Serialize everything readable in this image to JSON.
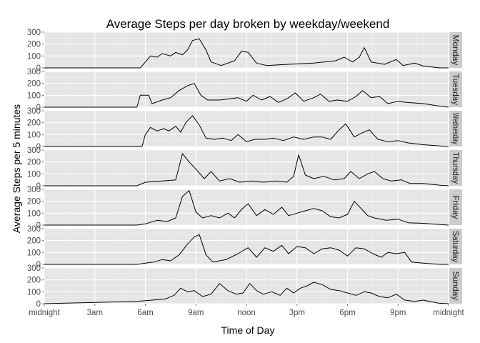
{
  "chart_data": {
    "type": "line",
    "title": "Average Steps per day broken by weekday/weekend",
    "xlabel": "Time of Day",
    "ylabel": "Average Steps per 5 minutes",
    "xlim": [
      0,
      24
    ],
    "ylim": [
      0,
      300
    ],
    "x_tick_values": [
      0,
      3,
      6,
      9,
      12,
      15,
      18,
      21,
      24
    ],
    "x_tick_labels": [
      "midnight",
      "3am",
      "6am",
      "9am",
      "noon",
      "3pm",
      "6pm",
      "9pm",
      "midnight"
    ],
    "y_tick_values": [
      0,
      100,
      200,
      300
    ],
    "y_tick_labels": [
      "0",
      "100",
      "200",
      "300"
    ],
    "grid": true,
    "facets": [
      {
        "name": "Monday",
        "points": [
          [
            0,
            0
          ],
          [
            5.7,
            0
          ],
          [
            6.0,
            50
          ],
          [
            6.3,
            100
          ],
          [
            6.7,
            90
          ],
          [
            7.0,
            120
          ],
          [
            7.5,
            100
          ],
          [
            7.8,
            130
          ],
          [
            8.2,
            110
          ],
          [
            8.5,
            150
          ],
          [
            8.8,
            230
          ],
          [
            9.2,
            245
          ],
          [
            9.6,
            150
          ],
          [
            9.9,
            50
          ],
          [
            10.5,
            20
          ],
          [
            11.3,
            60
          ],
          [
            11.7,
            140
          ],
          [
            12.1,
            130
          ],
          [
            12.6,
            40
          ],
          [
            13.2,
            20
          ],
          [
            14.5,
            30
          ],
          [
            16.0,
            40
          ],
          [
            17.3,
            60
          ],
          [
            17.8,
            90
          ],
          [
            18.3,
            50
          ],
          [
            18.7,
            90
          ],
          [
            19.0,
            170
          ],
          [
            19.4,
            50
          ],
          [
            20.2,
            30
          ],
          [
            20.9,
            70
          ],
          [
            21.3,
            20
          ],
          [
            22.0,
            40
          ],
          [
            22.5,
            15
          ],
          [
            23.5,
            0
          ],
          [
            24,
            0
          ]
        ]
      },
      {
        "name": "Tuesday",
        "points": [
          [
            0,
            0
          ],
          [
            5.5,
            0
          ],
          [
            5.7,
            100
          ],
          [
            6.2,
            100
          ],
          [
            6.4,
            30
          ],
          [
            7.0,
            60
          ],
          [
            7.5,
            80
          ],
          [
            8.0,
            140
          ],
          [
            8.5,
            180
          ],
          [
            8.9,
            200
          ],
          [
            9.3,
            100
          ],
          [
            9.7,
            60
          ],
          [
            10.4,
            60
          ],
          [
            11.0,
            70
          ],
          [
            11.5,
            80
          ],
          [
            12.0,
            50
          ],
          [
            12.4,
            100
          ],
          [
            12.9,
            60
          ],
          [
            13.4,
            90
          ],
          [
            13.9,
            40
          ],
          [
            14.4,
            70
          ],
          [
            14.9,
            120
          ],
          [
            15.4,
            50
          ],
          [
            16.0,
            80
          ],
          [
            16.4,
            110
          ],
          [
            16.9,
            50
          ],
          [
            17.4,
            60
          ],
          [
            18.0,
            50
          ],
          [
            18.5,
            90
          ],
          [
            18.9,
            140
          ],
          [
            19.4,
            80
          ],
          [
            19.9,
            90
          ],
          [
            20.4,
            30
          ],
          [
            21.0,
            50
          ],
          [
            21.5,
            40
          ],
          [
            22.5,
            30
          ],
          [
            23.4,
            10
          ],
          [
            24,
            0
          ]
        ]
      },
      {
        "name": "Wednesday",
        "points": [
          [
            0,
            0
          ],
          [
            5.8,
            0
          ],
          [
            6.0,
            100
          ],
          [
            6.3,
            160
          ],
          [
            6.7,
            130
          ],
          [
            7.1,
            150
          ],
          [
            7.4,
            130
          ],
          [
            7.8,
            170
          ],
          [
            8.1,
            120
          ],
          [
            8.4,
            200
          ],
          [
            8.8,
            260
          ],
          [
            9.2,
            180
          ],
          [
            9.6,
            70
          ],
          [
            10.1,
            60
          ],
          [
            10.6,
            70
          ],
          [
            11.1,
            50
          ],
          [
            11.5,
            100
          ],
          [
            12.0,
            40
          ],
          [
            12.5,
            60
          ],
          [
            13.1,
            60
          ],
          [
            13.6,
            70
          ],
          [
            14.2,
            50
          ],
          [
            14.8,
            80
          ],
          [
            15.4,
            60
          ],
          [
            16.0,
            80
          ],
          [
            16.5,
            80
          ],
          [
            17.0,
            60
          ],
          [
            17.5,
            140
          ],
          [
            17.9,
            190
          ],
          [
            18.4,
            80
          ],
          [
            18.8,
            110
          ],
          [
            19.3,
            140
          ],
          [
            19.8,
            60
          ],
          [
            20.4,
            40
          ],
          [
            21.0,
            50
          ],
          [
            21.6,
            30
          ],
          [
            22.5,
            15
          ],
          [
            23.5,
            5
          ],
          [
            24,
            0
          ]
        ]
      },
      {
        "name": "Thursday",
        "points": [
          [
            0,
            0
          ],
          [
            5.5,
            0
          ],
          [
            6.0,
            30
          ],
          [
            7.0,
            40
          ],
          [
            7.8,
            50
          ],
          [
            8.2,
            270
          ],
          [
            8.6,
            200
          ],
          [
            9.0,
            140
          ],
          [
            9.5,
            60
          ],
          [
            9.9,
            120
          ],
          [
            10.4,
            40
          ],
          [
            11.0,
            60
          ],
          [
            11.6,
            30
          ],
          [
            12.3,
            40
          ],
          [
            13.0,
            30
          ],
          [
            13.8,
            40
          ],
          [
            14.4,
            30
          ],
          [
            14.8,
            80
          ],
          [
            15.1,
            260
          ],
          [
            15.5,
            90
          ],
          [
            16.0,
            60
          ],
          [
            16.6,
            80
          ],
          [
            17.2,
            50
          ],
          [
            17.8,
            60
          ],
          [
            18.2,
            120
          ],
          [
            18.7,
            60
          ],
          [
            19.2,
            100
          ],
          [
            19.6,
            120
          ],
          [
            20.1,
            60
          ],
          [
            20.6,
            40
          ],
          [
            21.2,
            50
          ],
          [
            21.7,
            20
          ],
          [
            22.5,
            20
          ],
          [
            23.5,
            5
          ],
          [
            24,
            0
          ]
        ]
      },
      {
        "name": "Friday",
        "points": [
          [
            0,
            0
          ],
          [
            5.5,
            0
          ],
          [
            6.0,
            10
          ],
          [
            6.7,
            40
          ],
          [
            7.3,
            30
          ],
          [
            7.8,
            60
          ],
          [
            8.2,
            240
          ],
          [
            8.6,
            290
          ],
          [
            9.0,
            110
          ],
          [
            9.4,
            60
          ],
          [
            9.9,
            80
          ],
          [
            10.4,
            60
          ],
          [
            10.9,
            100
          ],
          [
            11.3,
            60
          ],
          [
            11.7,
            130
          ],
          [
            12.1,
            180
          ],
          [
            12.6,
            80
          ],
          [
            13.1,
            130
          ],
          [
            13.6,
            90
          ],
          [
            14.1,
            150
          ],
          [
            14.5,
            80
          ],
          [
            15.0,
            100
          ],
          [
            15.5,
            120
          ],
          [
            16.0,
            140
          ],
          [
            16.5,
            120
          ],
          [
            17.0,
            70
          ],
          [
            17.5,
            60
          ],
          [
            18.0,
            90
          ],
          [
            18.4,
            200
          ],
          [
            18.8,
            140
          ],
          [
            19.2,
            80
          ],
          [
            19.6,
            60
          ],
          [
            20.3,
            40
          ],
          [
            21.0,
            50
          ],
          [
            21.6,
            20
          ],
          [
            22.5,
            15
          ],
          [
            23.5,
            5
          ],
          [
            24,
            0
          ]
        ]
      },
      {
        "name": "Saturday",
        "points": [
          [
            0,
            0
          ],
          [
            5.5,
            0
          ],
          [
            6.0,
            10
          ],
          [
            6.5,
            20
          ],
          [
            7.0,
            40
          ],
          [
            7.5,
            30
          ],
          [
            8.0,
            80
          ],
          [
            8.5,
            170
          ],
          [
            8.9,
            230
          ],
          [
            9.2,
            250
          ],
          [
            9.6,
            80
          ],
          [
            10.0,
            20
          ],
          [
            10.8,
            40
          ],
          [
            11.5,
            90
          ],
          [
            12.1,
            140
          ],
          [
            12.6,
            60
          ],
          [
            13.1,
            140
          ],
          [
            13.6,
            110
          ],
          [
            14.1,
            160
          ],
          [
            14.5,
            90
          ],
          [
            15.0,
            150
          ],
          [
            15.5,
            140
          ],
          [
            16.0,
            90
          ],
          [
            16.5,
            130
          ],
          [
            17.0,
            140
          ],
          [
            17.5,
            120
          ],
          [
            18.0,
            70
          ],
          [
            18.5,
            140
          ],
          [
            19.0,
            130
          ],
          [
            19.5,
            90
          ],
          [
            20.0,
            60
          ],
          [
            20.4,
            100
          ],
          [
            20.9,
            90
          ],
          [
            21.4,
            100
          ],
          [
            21.8,
            20
          ],
          [
            22.5,
            10
          ],
          [
            23.5,
            0
          ],
          [
            24,
            0
          ]
        ]
      },
      {
        "name": "Sunday",
        "points": [
          [
            0,
            0
          ],
          [
            3.0,
            10
          ],
          [
            5.5,
            20
          ],
          [
            6.4,
            30
          ],
          [
            7.2,
            40
          ],
          [
            7.7,
            70
          ],
          [
            8.1,
            130
          ],
          [
            8.5,
            100
          ],
          [
            8.9,
            110
          ],
          [
            9.4,
            60
          ],
          [
            9.9,
            80
          ],
          [
            10.4,
            170
          ],
          [
            10.9,
            110
          ],
          [
            11.4,
            80
          ],
          [
            11.8,
            90
          ],
          [
            12.2,
            170
          ],
          [
            12.6,
            110
          ],
          [
            13.0,
            80
          ],
          [
            13.5,
            100
          ],
          [
            14.0,
            70
          ],
          [
            14.4,
            130
          ],
          [
            14.8,
            90
          ],
          [
            15.2,
            130
          ],
          [
            15.6,
            150
          ],
          [
            16.0,
            180
          ],
          [
            16.5,
            160
          ],
          [
            17.0,
            120
          ],
          [
            17.5,
            110
          ],
          [
            18.0,
            90
          ],
          [
            18.5,
            70
          ],
          [
            19.0,
            100
          ],
          [
            19.4,
            90
          ],
          [
            19.9,
            60
          ],
          [
            20.4,
            50
          ],
          [
            20.9,
            80
          ],
          [
            21.4,
            30
          ],
          [
            22.0,
            20
          ],
          [
            22.5,
            30
          ],
          [
            23.4,
            5
          ],
          [
            24,
            0
          ]
        ]
      }
    ]
  }
}
